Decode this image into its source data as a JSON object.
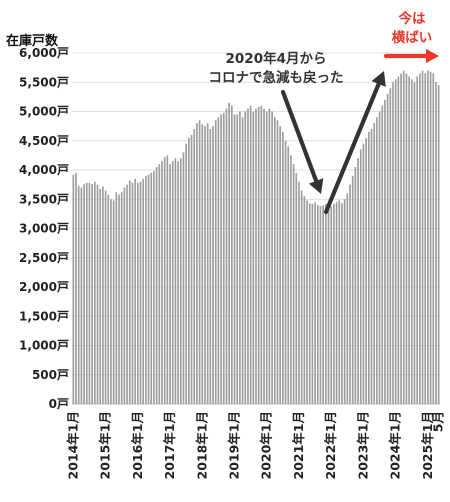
{
  "chart_data": {
    "type": "bar",
    "title": "在庫戸数",
    "color": "#9e9e9e",
    "ylim": [
      0,
      6000
    ],
    "y_ticks": [
      {
        "value": 0,
        "label": "0戸"
      },
      {
        "value": 500,
        "label": "500戸"
      },
      {
        "value": 1000,
        "label": "1,000戸"
      },
      {
        "value": 1500,
        "label": "1,500戸"
      },
      {
        "value": 2000,
        "label": "2,000戸"
      },
      {
        "value": 2500,
        "label": "2,500戸"
      },
      {
        "value": 3000,
        "label": "3,000戸"
      },
      {
        "value": 3500,
        "label": "3,500戸"
      },
      {
        "value": 4000,
        "label": "4,000戸"
      },
      {
        "value": 4500,
        "label": "4,500戸"
      },
      {
        "value": 5000,
        "label": "5,000戸"
      },
      {
        "value": 5500,
        "label": "5,500戸"
      },
      {
        "value": 6000,
        "label": "6,000戸"
      }
    ],
    "x_ticks": [
      {
        "index": 0,
        "label": "2014年1月"
      },
      {
        "index": 12,
        "label": "2015年1月"
      },
      {
        "index": 24,
        "label": "2016年1月"
      },
      {
        "index": 36,
        "label": "2017年1月"
      },
      {
        "index": 48,
        "label": "2018年1月"
      },
      {
        "index": 60,
        "label": "2019年1月"
      },
      {
        "index": 72,
        "label": "2020年1月"
      },
      {
        "index": 84,
        "label": "2021年1月"
      },
      {
        "index": 96,
        "label": "2022年1月"
      },
      {
        "index": 108,
        "label": "2023年1月"
      },
      {
        "index": 120,
        "label": "2024年1月"
      },
      {
        "index": 132,
        "label": "2025年1月"
      },
      {
        "index": 136,
        "label": "5月"
      }
    ],
    "start": "2014-01",
    "end": "2025-05",
    "values": [
      3920,
      3950,
      3730,
      3700,
      3760,
      3780,
      3780,
      3760,
      3800,
      3750,
      3680,
      3720,
      3650,
      3580,
      3500,
      3480,
      3620,
      3580,
      3620,
      3700,
      3750,
      3820,
      3780,
      3850,
      3780,
      3800,
      3850,
      3900,
      3920,
      3950,
      3980,
      4050,
      4100,
      4150,
      4220,
      4250,
      4100,
      4150,
      4200,
      4150,
      4200,
      4300,
      4450,
      4550,
      4600,
      4700,
      4800,
      4850,
      4780,
      4750,
      4800,
      4700,
      4750,
      4850,
      4900,
      4950,
      4980,
      5050,
      5150,
      5100,
      4950,
      4950,
      5000,
      4900,
      5000,
      5050,
      5100,
      5000,
      5050,
      5080,
      5100,
      5050,
      5000,
      5050,
      5000,
      4900,
      4850,
      4750,
      4650,
      4500,
      4400,
      4250,
      4100,
      3950,
      3800,
      3650,
      3550,
      3480,
      3430,
      3420,
      3450,
      3400,
      3380,
      3400,
      3420,
      3450,
      3380,
      3420,
      3450,
      3480,
      3430,
      3500,
      3600,
      3750,
      3900,
      4050,
      4200,
      4350,
      4450,
      4550,
      4650,
      4700,
      4800,
      4900,
      5000,
      5100,
      5200,
      5300,
      5400,
      5500,
      5550,
      5600,
      5650,
      5700,
      5650,
      5600,
      5550,
      5500,
      5600,
      5650,
      5700,
      5650,
      5700,
      5680,
      5650,
      5500,
      5450
    ],
    "annotations": [
      {
        "text": "2020年4月から",
        "color": "#333333"
      },
      {
        "text": "コロナで急減も戻った",
        "color": "#333333"
      },
      {
        "text": "今は",
        "color": "#e8382b"
      },
      {
        "text": "横ばい",
        "color": "#e8382b"
      }
    ],
    "arrow_colors": {
      "down": "#333333",
      "up": "#333333",
      "right": "#e8382b"
    }
  }
}
